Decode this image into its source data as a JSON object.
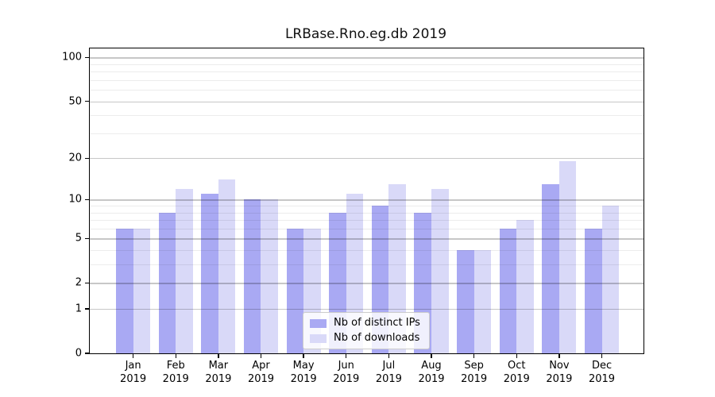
{
  "title": "LRBase.Rno.eg.db 2019",
  "chart_data": {
    "type": "bar",
    "title": "LRBase.Rno.eg.db 2019",
    "categories": [
      "Jan",
      "Feb",
      "Mar",
      "Apr",
      "May",
      "Jun",
      "Jul",
      "Aug",
      "Sep",
      "Oct",
      "Nov",
      "Dec"
    ],
    "x_year_suffix": "2019",
    "series": [
      {
        "name": "Nb of distinct IPs",
        "color": "#a9a9f3",
        "values": [
          6,
          8,
          11,
          10,
          6,
          8,
          9,
          8,
          4,
          6,
          13,
          6
        ]
      },
      {
        "name": "Nb of downloads",
        "color": "#d9d9f8",
        "values": [
          6,
          12,
          14,
          10,
          6,
          11,
          13,
          12,
          4,
          7,
          19,
          9
        ]
      }
    ],
    "xlabel": "",
    "ylabel": "",
    "yscale": "log1p",
    "ylim": [
      0,
      115.4
    ],
    "y_ticks": [
      100,
      50,
      20,
      10,
      5,
      2,
      1,
      0
    ],
    "y_minor_gridlines": [
      3,
      4,
      6,
      7,
      8,
      9,
      30,
      40,
      60,
      70,
      80,
      90
    ],
    "grid": true,
    "legend_position": "lower center",
    "frame_color": "#000000",
    "background_color": "#ffffff"
  }
}
